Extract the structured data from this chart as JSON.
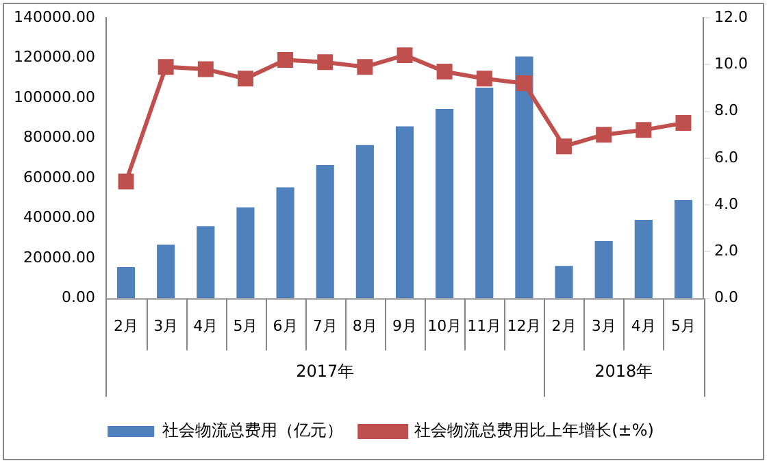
{
  "chart_data": {
    "type": "bar",
    "categories": [
      "2月",
      "3月",
      "4月",
      "5月",
      "6月",
      "7月",
      "8月",
      "9月",
      "10月",
      "11月",
      "12月",
      "2月",
      "3月",
      "4月",
      "5月"
    ],
    "series": [
      {
        "name": "社会物流总费用（亿元）",
        "color": "#4f81bd",
        "values": [
          15600,
          26800,
          36000,
          45400,
          55400,
          66500,
          76500,
          85800,
          94500,
          105100,
          120700,
          16200,
          28600,
          39200,
          49100
        ]
      },
      {
        "name": "社会物流总费用比上年增长(±%)",
        "type": "line",
        "axis": "y2",
        "color": "#c0504d",
        "marker": "square",
        "values": [
          5.0,
          9.9,
          9.8,
          9.4,
          10.2,
          10.1,
          9.9,
          10.4,
          9.7,
          9.4,
          9.2,
          6.5,
          7.0,
          7.2,
          7.5
        ]
      }
    ],
    "ylim": [
      0,
      140000
    ],
    "yticks": [
      {
        "value": 0,
        "label": "0.00"
      },
      {
        "value": 20000,
        "label": "20000.00"
      },
      {
        "value": 40000,
        "label": "40000.00"
      },
      {
        "value": 60000,
        "label": "60000.00"
      },
      {
        "value": 80000,
        "label": "80000.00"
      },
      {
        "value": 100000,
        "label": "100000.00"
      },
      {
        "value": 120000,
        "label": "120000.00"
      },
      {
        "value": 140000,
        "label": "140000.00"
      }
    ],
    "y2lim": [
      0,
      12
    ],
    "y2ticks": [
      {
        "value": 0,
        "label": "0.0"
      },
      {
        "value": 2,
        "label": "2.0"
      },
      {
        "value": 4,
        "label": "4.0"
      },
      {
        "value": 6,
        "label": "6.0"
      },
      {
        "value": 8,
        "label": "8.0"
      },
      {
        "value": 10,
        "label": "10.0"
      },
      {
        "value": 12,
        "label": "12.0"
      }
    ],
    "annotations": [
      "2017年",
      "2018年"
    ],
    "grid": false,
    "legend": "bottom"
  }
}
